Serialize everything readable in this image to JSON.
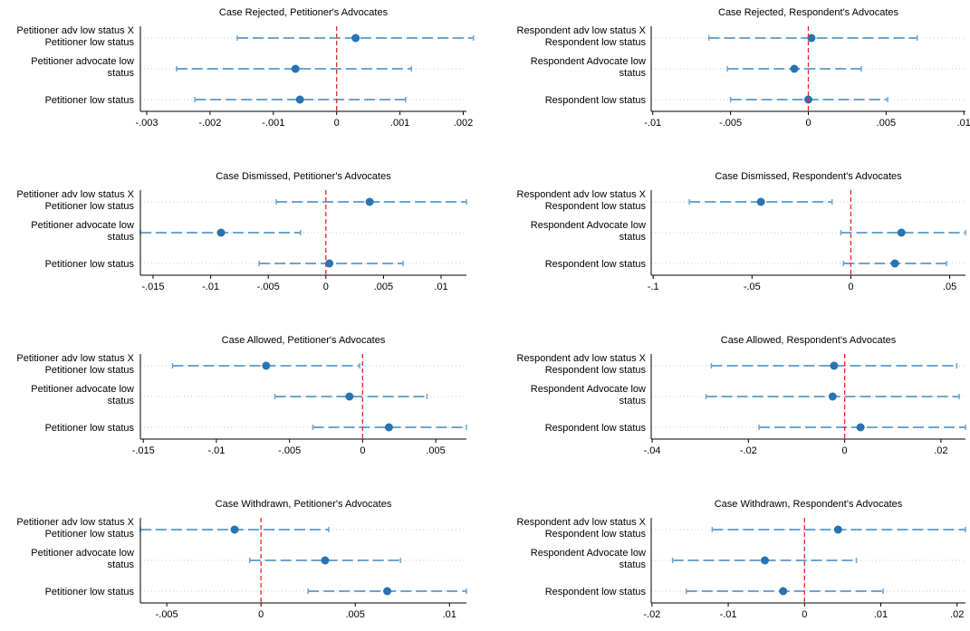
{
  "colors": {
    "marker": "#2874b2",
    "ci_line": "#6fa5cf",
    "zero_line": "#e8262b",
    "gridline": "#c8c8c8",
    "axis": "#000000"
  },
  "chart_data": [
    {
      "type": "coefficient-plot",
      "title": "Case Rejected, Petitioner's Advocates",
      "xlim": [
        -0.0031,
        0.00205
      ],
      "ticks": [
        -0.003,
        -0.002,
        -0.001,
        0,
        0.001,
        0.002
      ],
      "tick_labels": [
        "-.003",
        "-.002",
        "-.001",
        "0",
        ".001",
        ".002"
      ],
      "rows": [
        {
          "label": [
            "Petitioner adv low status X",
            "Petitioner low status"
          ],
          "estimate": 0.0003,
          "ci": [
            -0.00157,
            0.00216
          ]
        },
        {
          "label": [
            "Petitioner advocate low",
            "status"
          ],
          "estimate": -0.00065,
          "ci": [
            -0.00253,
            0.00118
          ]
        },
        {
          "label": [
            "Petitioner low status"
          ],
          "estimate": -0.00058,
          "ci": [
            -0.00224,
            0.00109
          ]
        }
      ]
    },
    {
      "type": "coefficient-plot",
      "title": "Case Rejected, Respondent's Advocates",
      "xlim": [
        -0.0101,
        0.0101
      ],
      "ticks": [
        -0.01,
        -0.005,
        0,
        0.005,
        0.01
      ],
      "tick_labels": [
        "-.01",
        "-.005",
        "0",
        ".005",
        ".01"
      ],
      "rows": [
        {
          "label": [
            "Respondent adv low status X",
            "Respondent low status"
          ],
          "estimate": 0.0002,
          "ci": [
            -0.0064,
            0.007
          ]
        },
        {
          "label": [
            "Respondent Advocate low",
            "status"
          ],
          "estimate": -0.0009,
          "ci": [
            -0.0052,
            0.0034
          ]
        },
        {
          "label": [
            "Respondent low status"
          ],
          "estimate": 0.0,
          "ci": [
            -0.005,
            0.0051
          ]
        }
      ]
    },
    {
      "type": "coefficient-plot",
      "title": "Case Dismissed, Petitioner's Advocates",
      "xlim": [
        -0.0161,
        0.0122
      ],
      "ticks": [
        -0.015,
        -0.01,
        -0.005,
        0,
        0.005,
        0.01
      ],
      "tick_labels": [
        "-.015",
        "-.01",
        "-.005",
        "0",
        ".005",
        ".01"
      ],
      "rows": [
        {
          "label": [
            "Petitioner adv low status X",
            "Petitioner low status"
          ],
          "estimate": 0.0038,
          "ci": [
            -0.0043,
            0.0122
          ]
        },
        {
          "label": [
            "Petitioner advocate low",
            "status"
          ],
          "estimate": -0.0091,
          "ci": [
            -0.0161,
            -0.0022
          ]
        },
        {
          "label": [
            "Petitioner low status"
          ],
          "estimate": 0.0003,
          "ci": [
            -0.0058,
            0.0067
          ]
        }
      ]
    },
    {
      "type": "coefficient-plot",
      "title": "Case Dismissed, Respondent's Advocates",
      "xlim": [
        -0.101,
        0.058
      ],
      "ticks": [
        -0.1,
        -0.05,
        0,
        0.05
      ],
      "tick_labels": [
        "-.1",
        "-.05",
        "0",
        ".05"
      ],
      "rows": [
        {
          "label": [
            "Respondent adv low status X",
            "Respondent low status"
          ],
          "estimate": -0.0455,
          "ci": [
            -0.0817,
            -0.0095
          ]
        },
        {
          "label": [
            "Respondent Advocate low",
            "status"
          ],
          "estimate": 0.0256,
          "ci": [
            -0.005,
            0.058
          ]
        },
        {
          "label": [
            "Respondent low status"
          ],
          "estimate": 0.0223,
          "ci": [
            -0.0037,
            0.0484
          ]
        }
      ]
    },
    {
      "type": "coefficient-plot",
      "title": "Case Allowed, Petitioner's Advocates",
      "xlim": [
        -0.0152,
        0.0071
      ],
      "ticks": [
        -0.015,
        -0.01,
        -0.005,
        0,
        0.005
      ],
      "tick_labels": [
        "-.015",
        "-.01",
        "-.005",
        "0",
        ".005"
      ],
      "rows": [
        {
          "label": [
            "Petitioner adv low status X",
            "Petitioner low status"
          ],
          "estimate": -0.0066,
          "ci": [
            -0.013,
            -0.0002
          ]
        },
        {
          "label": [
            "Petitioner advocate low",
            "status"
          ],
          "estimate": -0.0009,
          "ci": [
            -0.006,
            0.0044
          ]
        },
        {
          "label": [
            "Petitioner low status"
          ],
          "estimate": 0.0018,
          "ci": [
            -0.0034,
            0.0071
          ]
        }
      ]
    },
    {
      "type": "coefficient-plot",
      "title": "Case Allowed, Respondent's Advocates",
      "xlim": [
        -0.0402,
        0.0251
      ],
      "ticks": [
        -0.04,
        -0.02,
        0,
        0.02
      ],
      "tick_labels": [
        "-.04",
        "-.02",
        "0",
        ".02"
      ],
      "rows": [
        {
          "label": [
            "Respondent adv low status X",
            "Respondent low status"
          ],
          "estimate": -0.0022,
          "ci": [
            -0.0277,
            0.0233
          ]
        },
        {
          "label": [
            "Respondent Advocate low",
            "status"
          ],
          "estimate": -0.0025,
          "ci": [
            -0.0288,
            0.0238
          ]
        },
        {
          "label": [
            "Respondent low status"
          ],
          "estimate": 0.0033,
          "ci": [
            -0.0178,
            0.0251
          ]
        }
      ]
    },
    {
      "type": "coefficient-plot",
      "title": "Case Withdrawn, Petitioner's Advocates",
      "xlim": [
        -0.0064,
        0.0109
      ],
      "ticks": [
        -0.005,
        0,
        0.005,
        0.01
      ],
      "tick_labels": [
        "-.005",
        "0",
        ".005",
        ".01"
      ],
      "rows": [
        {
          "label": [
            "Petitioner adv low status X",
            "Petitioner low status"
          ],
          "estimate": -0.0014,
          "ci": [
            -0.0064,
            0.0036
          ]
        },
        {
          "label": [
            "Petitioner advocate low",
            "status"
          ],
          "estimate": 0.0034,
          "ci": [
            -0.0006,
            0.0074
          ]
        },
        {
          "label": [
            "Petitioner low status"
          ],
          "estimate": 0.0067,
          "ci": [
            0.0025,
            0.0109
          ]
        }
      ]
    },
    {
      "type": "coefficient-plot",
      "title": "Case Withdrawn, Respondent's Advocates",
      "xlim": [
        -0.0201,
        0.0211
      ],
      "ticks": [
        -0.02,
        -0.01,
        0,
        0.01,
        0.02
      ],
      "tick_labels": [
        "-.02",
        "-.01",
        "0",
        ".01",
        ".02"
      ],
      "rows": [
        {
          "label": [
            "Respondent adv low status X",
            "Respondent low status"
          ],
          "estimate": 0.0044,
          "ci": [
            -0.0121,
            0.0211
          ]
        },
        {
          "label": [
            "Respondent Advocate low",
            "status"
          ],
          "estimate": -0.0052,
          "ci": [
            -0.0173,
            0.0068
          ]
        },
        {
          "label": [
            "Respondent low status"
          ],
          "estimate": -0.0028,
          "ci": [
            -0.0155,
            0.0103
          ]
        }
      ]
    }
  ]
}
